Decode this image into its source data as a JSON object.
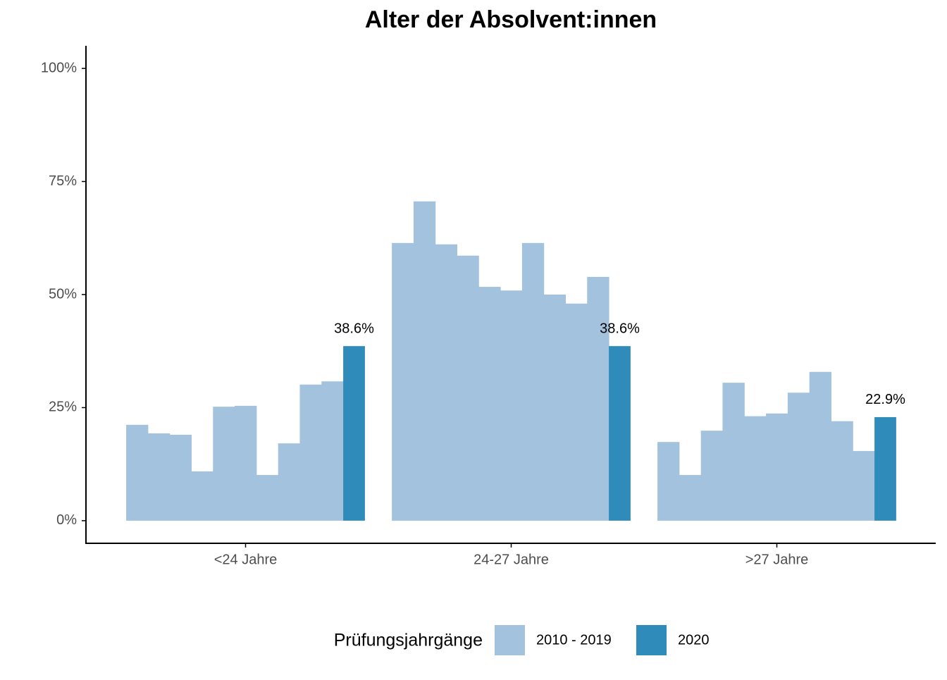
{
  "chart_data": {
    "type": "bar",
    "title": "Alter der Absolvent:innen",
    "categories": [
      "<24 Jahre",
      "24-27 Jahre",
      ">27 Jahre"
    ],
    "legend_title": "Prüfungsjahrgänge",
    "series": [
      {
        "name": "2010 - 2019",
        "color": "#a3c2de",
        "values": [
          [
            21.2,
            19.3,
            19.0,
            10.9,
            25.2,
            25.4,
            10.1,
            17.1,
            30.1,
            30.8
          ],
          [
            61.4,
            70.6,
            61.1,
            58.6,
            51.7,
            50.9,
            61.4,
            50.0,
            48.0,
            53.9
          ],
          [
            17.4,
            10.1,
            19.9,
            30.5,
            23.1,
            23.7,
            28.3,
            32.9,
            22.0,
            15.4
          ]
        ]
      },
      {
        "name": "2020",
        "color": "#2f8bb9",
        "values": [
          38.6,
          38.6,
          22.9
        ],
        "value_labels": [
          "38.6%",
          "38.6%",
          "22.9%"
        ]
      }
    ],
    "ylim": [
      -5,
      105
    ],
    "yticks": [
      {
        "value": 0,
        "label": "0%"
      },
      {
        "value": 25,
        "label": "25%"
      },
      {
        "value": 50,
        "label": "50%"
      },
      {
        "value": 75,
        "label": "75%"
      },
      {
        "value": 100,
        "label": "100%"
      }
    ],
    "legend_position": "bottom"
  }
}
